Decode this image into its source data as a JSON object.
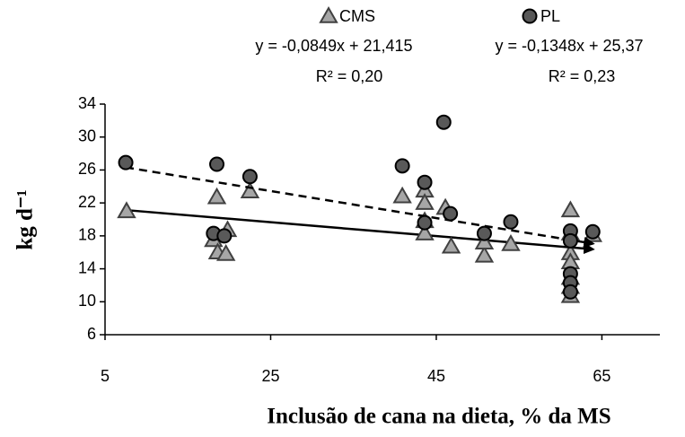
{
  "chart_data": {
    "type": "scatter",
    "x_label": "Inclusão de cana na dieta, % da MS",
    "y_label": "kg d⁻¹",
    "xlim": [
      5,
      72
    ],
    "xticks": [
      5,
      25,
      45,
      65
    ],
    "ylim": [
      6,
      34
    ],
    "yticks": [
      6,
      10,
      14,
      18,
      22,
      26,
      30,
      34
    ],
    "trendline": true,
    "series": [
      {
        "name": "CMS",
        "marker": "triangle",
        "color": "#a6a6a6",
        "line_style": "solid",
        "equation": "y = -0,0849x + 21,415",
        "r2": "R² = 0,20",
        "x": [
          7.6,
          18.1,
          18.5,
          18.6,
          19.8,
          19.6,
          22.5,
          40.9,
          43.6,
          43.6,
          43.6,
          43.6,
          46.1,
          46.8,
          50.8,
          50.8,
          54,
          61.2,
          61.2,
          61.2,
          61.2,
          61.2,
          61.2,
          61.2,
          63.9
        ],
        "values": [
          21.0,
          17.5,
          22.7,
          16.0,
          18.7,
          15.8,
          23.4,
          22.8,
          23.5,
          22.0,
          19.8,
          18.3,
          21.4,
          16.7,
          15.6,
          17.2,
          17.0,
          21.1,
          18.3,
          15.9,
          14.8,
          12.9,
          11.8,
          10.7,
          18.1
        ]
      },
      {
        "name": "PL",
        "marker": "circle",
        "color": "#595959",
        "line_style": "dashed",
        "equation": "y = -0,1348x + 25,37",
        "r2": "R² = 0,23",
        "x": [
          7.5,
          18.5,
          18.1,
          19.4,
          22.5,
          40.9,
          43.6,
          43.6,
          45.9,
          46.7,
          50.8,
          54,
          61.2,
          61.2,
          61.2,
          61.2,
          61.2,
          63.9
        ],
        "values": [
          26.9,
          26.7,
          18.3,
          18.0,
          25.2,
          26.5,
          24.5,
          19.6,
          31.8,
          20.7,
          18.3,
          19.7,
          18.6,
          17.4,
          13.4,
          12.3,
          11.2,
          18.5
        ]
      }
    ]
  }
}
